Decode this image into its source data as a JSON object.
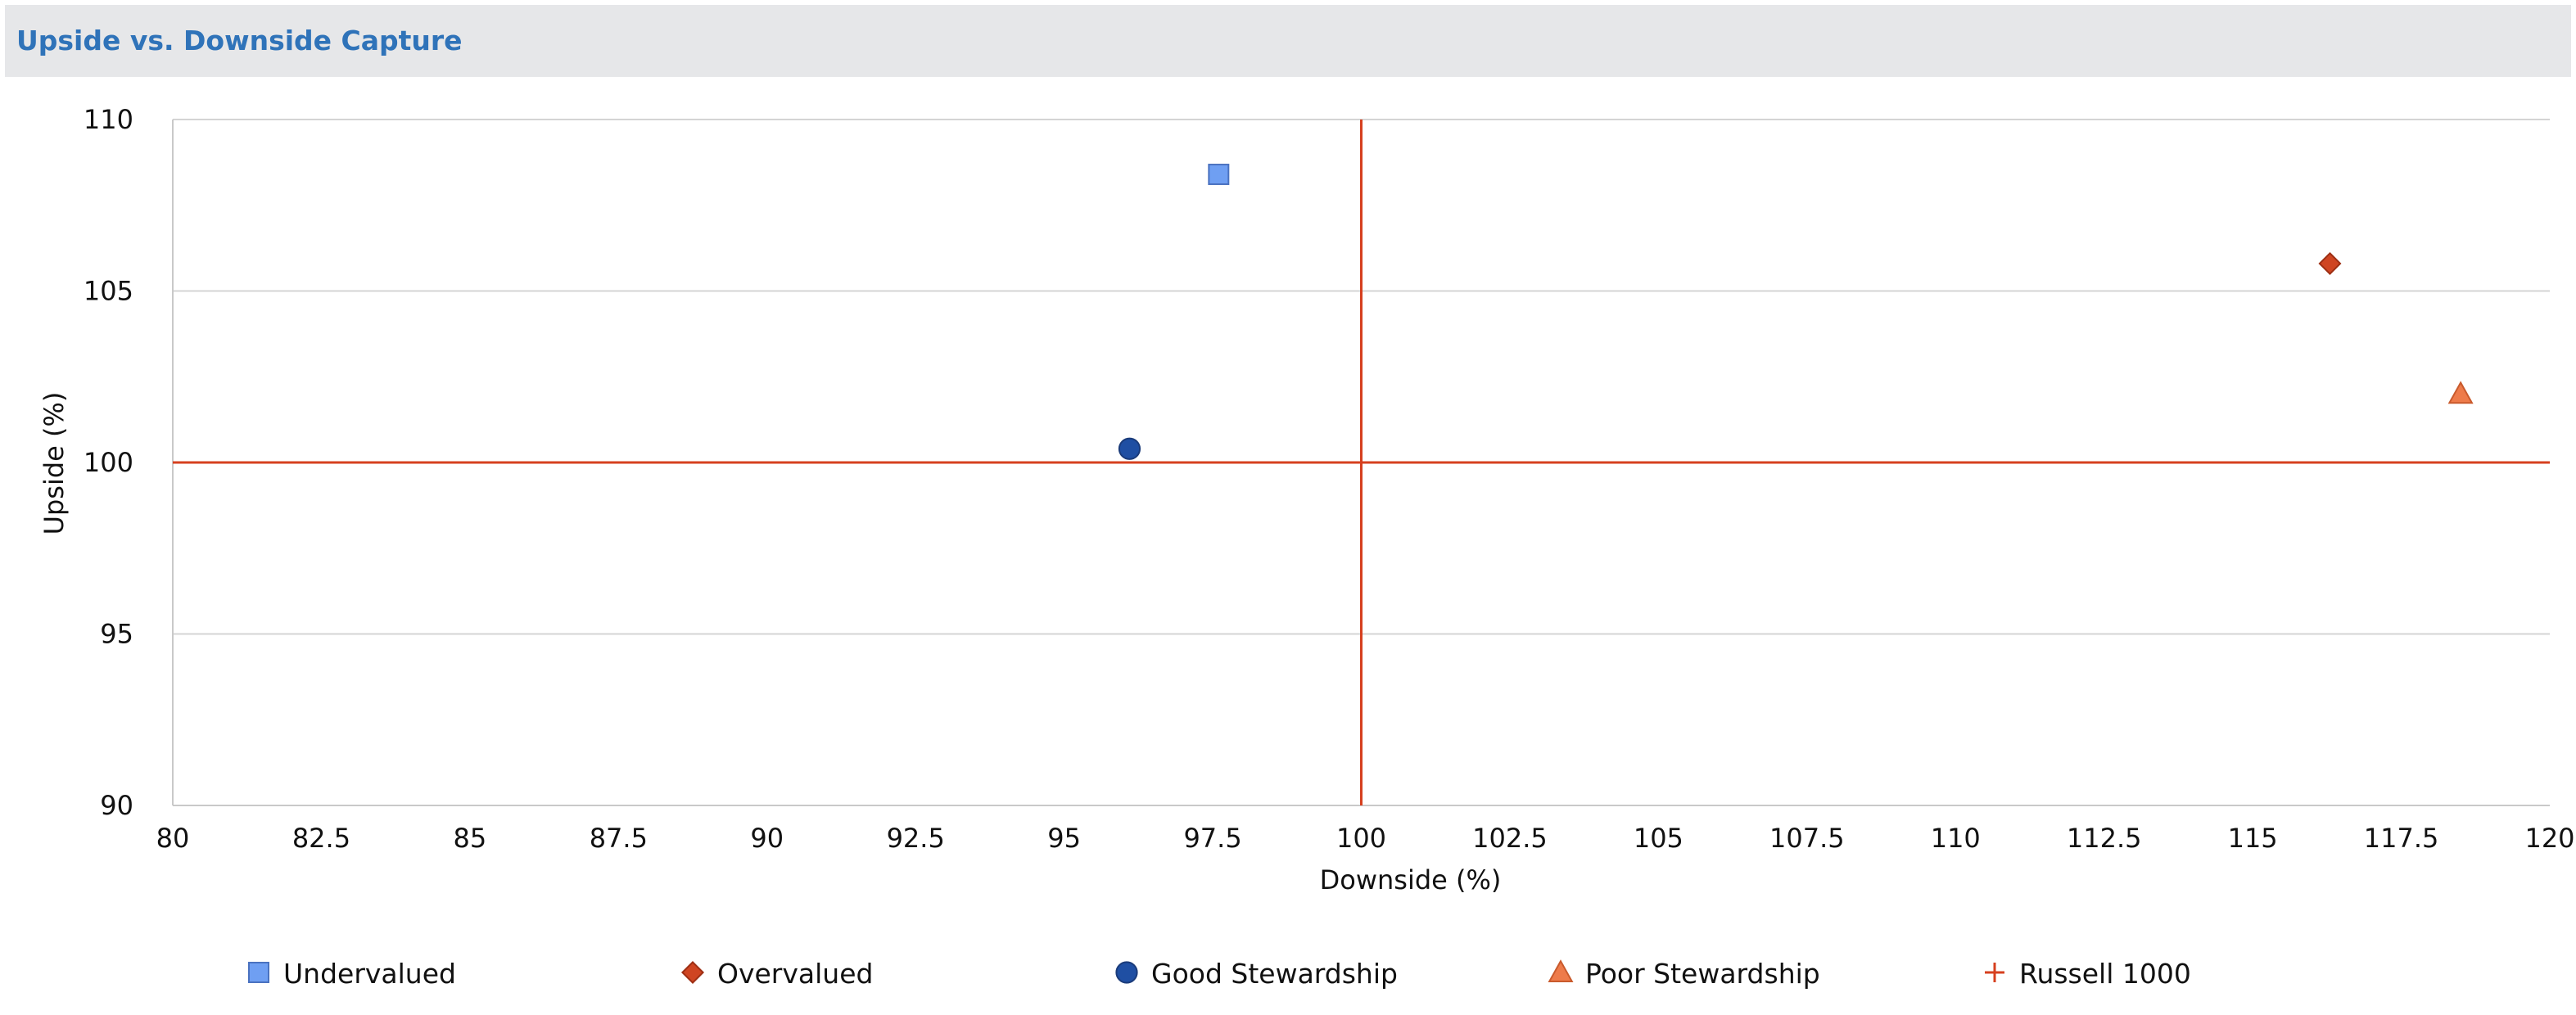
{
  "title": "Upside vs. Downside Capture",
  "colors": {
    "title": "#2f73b9",
    "title_bar": "#e6e7e9",
    "grid": "#d4d4d4",
    "axis": "#c9c9c9",
    "reference_line": "#d6401f"
  },
  "chart_data": {
    "type": "scatter",
    "title": "Upside vs. Downside Capture",
    "xlabel": "Downside (%)",
    "ylabel": "Upside (%)",
    "xlim": [
      80,
      120
    ],
    "ylim": [
      90,
      110
    ],
    "xticks": [
      "80",
      "82.5",
      "85",
      "87.5",
      "90",
      "92.5",
      "95",
      "97.5",
      "100",
      "102.5",
      "105",
      "107.5",
      "110",
      "112.5",
      "115",
      "117.5",
      "120"
    ],
    "yticks": [
      "90",
      "95",
      "100",
      "105",
      "110"
    ],
    "grid": "horizontal",
    "legend_position": "bottom",
    "reference_lines": {
      "x": 100,
      "y": 100,
      "color": "#d6401f"
    },
    "series": [
      {
        "name": "Undervalued",
        "marker": "square",
        "color": "#6f9ff2",
        "points": [
          {
            "x": 97.6,
            "y": 108.4
          }
        ]
      },
      {
        "name": "Overvalued",
        "marker": "diamond",
        "color": "#cf4522",
        "points": [
          {
            "x": 116.3,
            "y": 105.8
          }
        ]
      },
      {
        "name": "Good Stewardship",
        "marker": "circle",
        "color": "#1f4fa3",
        "points": [
          {
            "x": 96.1,
            "y": 100.4
          }
        ]
      },
      {
        "name": "Poor Stewardship",
        "marker": "triangle",
        "color": "#ee7b4a",
        "points": [
          {
            "x": 118.5,
            "y": 102.0
          }
        ]
      },
      {
        "name": "Russell 1000",
        "marker": "plus",
        "color": "#d6401f",
        "points": [
          {
            "x": 100,
            "y": 100
          }
        ]
      }
    ]
  }
}
